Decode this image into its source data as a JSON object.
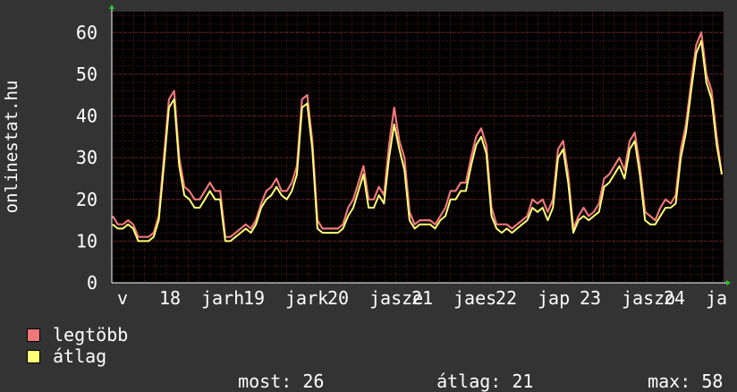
{
  "chart_data": {
    "type": "line",
    "ylabel": "onlinestat.hu",
    "ylim": [
      0,
      65
    ],
    "y_ticks": [
      0,
      10,
      20,
      30,
      40,
      50,
      60
    ],
    "x_tick_labels": [
      "v",
      "18",
      "jarh",
      "19",
      "jark",
      "20",
      "jasze",
      "21",
      "jaes",
      "22",
      "jap",
      "23",
      "jaszo",
      "24",
      "ja"
    ],
    "grid": true,
    "colors": {
      "background": "#333333",
      "plot_bg": "#000000",
      "grid": "#5a1e1e",
      "max_series": "#ee7777",
      "avg_series": "#ffff77",
      "axis_arrow": "#22cc22"
    },
    "series": [
      {
        "name": "legtöbb",
        "color": "#ee7777",
        "values": [
          16,
          14,
          14,
          15,
          14,
          11,
          11,
          11,
          12,
          16,
          30,
          44,
          46,
          30,
          23,
          22,
          20,
          20,
          22,
          24,
          22,
          22,
          11,
          11,
          12,
          13,
          14,
          13,
          15,
          19,
          22,
          23,
          25,
          22,
          22,
          24,
          28,
          44,
          45,
          34,
          15,
          13,
          13,
          13,
          13,
          14,
          18,
          20,
          24,
          28,
          20,
          20,
          23,
          21,
          33,
          42,
          34,
          30,
          17,
          14,
          15,
          15,
          15,
          14,
          16,
          18,
          22,
          22,
          24,
          24,
          30,
          35,
          37,
          33,
          18,
          14,
          14,
          14,
          13,
          14,
          15,
          16,
          20,
          19,
          20,
          17,
          20,
          32,
          34,
          26,
          13,
          16,
          18,
          16,
          17,
          19,
          25,
          26,
          28,
          30,
          27,
          34,
          36,
          28,
          17,
          16,
          15,
          18,
          20,
          19,
          21,
          32,
          38,
          48,
          57,
          60,
          50,
          46,
          35,
          26
        ]
      },
      {
        "name": "átlag",
        "color": "#ffff77",
        "values": [
          14,
          13,
          13,
          14,
          13,
          10,
          10,
          10,
          11,
          15,
          28,
          42,
          44,
          28,
          21,
          20,
          18,
          18,
          20,
          22,
          20,
          20,
          10,
          10,
          11,
          12,
          13,
          12,
          14,
          18,
          20,
          21,
          23,
          21,
          20,
          22,
          26,
          42,
          43,
          32,
          13,
          12,
          12,
          12,
          12,
          13,
          16,
          18,
          22,
          26,
          18,
          18,
          21,
          19,
          30,
          38,
          32,
          27,
          15,
          13,
          14,
          14,
          14,
          13,
          15,
          16,
          20,
          20,
          22,
          22,
          28,
          33,
          35,
          31,
          16,
          13,
          12,
          13,
          12,
          13,
          14,
          15,
          18,
          17,
          18,
          15,
          18,
          30,
          32,
          24,
          12,
          15,
          16,
          15,
          16,
          17,
          23,
          24,
          26,
          28,
          25,
          32,
          34,
          26,
          15,
          14,
          14,
          16,
          18,
          18,
          19,
          30,
          36,
          46,
          55,
          58,
          48,
          44,
          33,
          26
        ]
      }
    ]
  },
  "legend": {
    "items": [
      {
        "label": "legtöbb",
        "color": "#ee7777"
      },
      {
        "label": "átlag",
        "color": "#ffff77"
      }
    ]
  },
  "stats": {
    "now_label": "most:",
    "now_value": "26",
    "avg_label": "átlag:",
    "avg_value": "21",
    "max_label": "max:",
    "max_value": "58"
  }
}
